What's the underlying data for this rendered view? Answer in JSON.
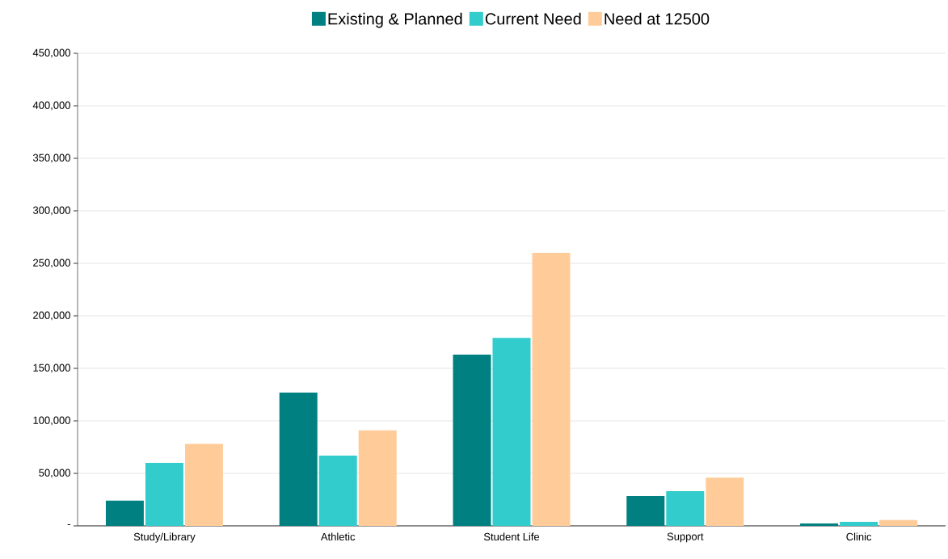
{
  "chart_data": {
    "type": "bar",
    "categories": [
      "Study/Library",
      "Athletic",
      "Student Life",
      "Support",
      "Clinic"
    ],
    "series": [
      {
        "name": "Existing & Planned",
        "color": "#008080",
        "values": [
          24000,
          127000,
          163000,
          28500,
          2300
        ]
      },
      {
        "name": "Current Need",
        "color": "#33cccc",
        "values": [
          60000,
          67000,
          179000,
          33000,
          3800
        ]
      },
      {
        "name": "Need at 12500",
        "color": "#ffcc99",
        "values": [
          78000,
          91000,
          260000,
          46000,
          5600
        ]
      }
    ],
    "ylim": [
      0,
      450000
    ],
    "yticks": [
      {
        "value": 0,
        "label": "-"
      },
      {
        "value": 50000,
        "label": "50,000"
      },
      {
        "value": 100000,
        "label": "100,000"
      },
      {
        "value": 150000,
        "label": "150,000"
      },
      {
        "value": 200000,
        "label": "200,000"
      },
      {
        "value": 250000,
        "label": "250,000"
      },
      {
        "value": 300000,
        "label": "300,000"
      },
      {
        "value": 350000,
        "label": "350,000"
      },
      {
        "value": 400000,
        "label": "400,000"
      },
      {
        "value": 450000,
        "label": "450,000"
      }
    ],
    "grid": "y",
    "legend": "top"
  }
}
